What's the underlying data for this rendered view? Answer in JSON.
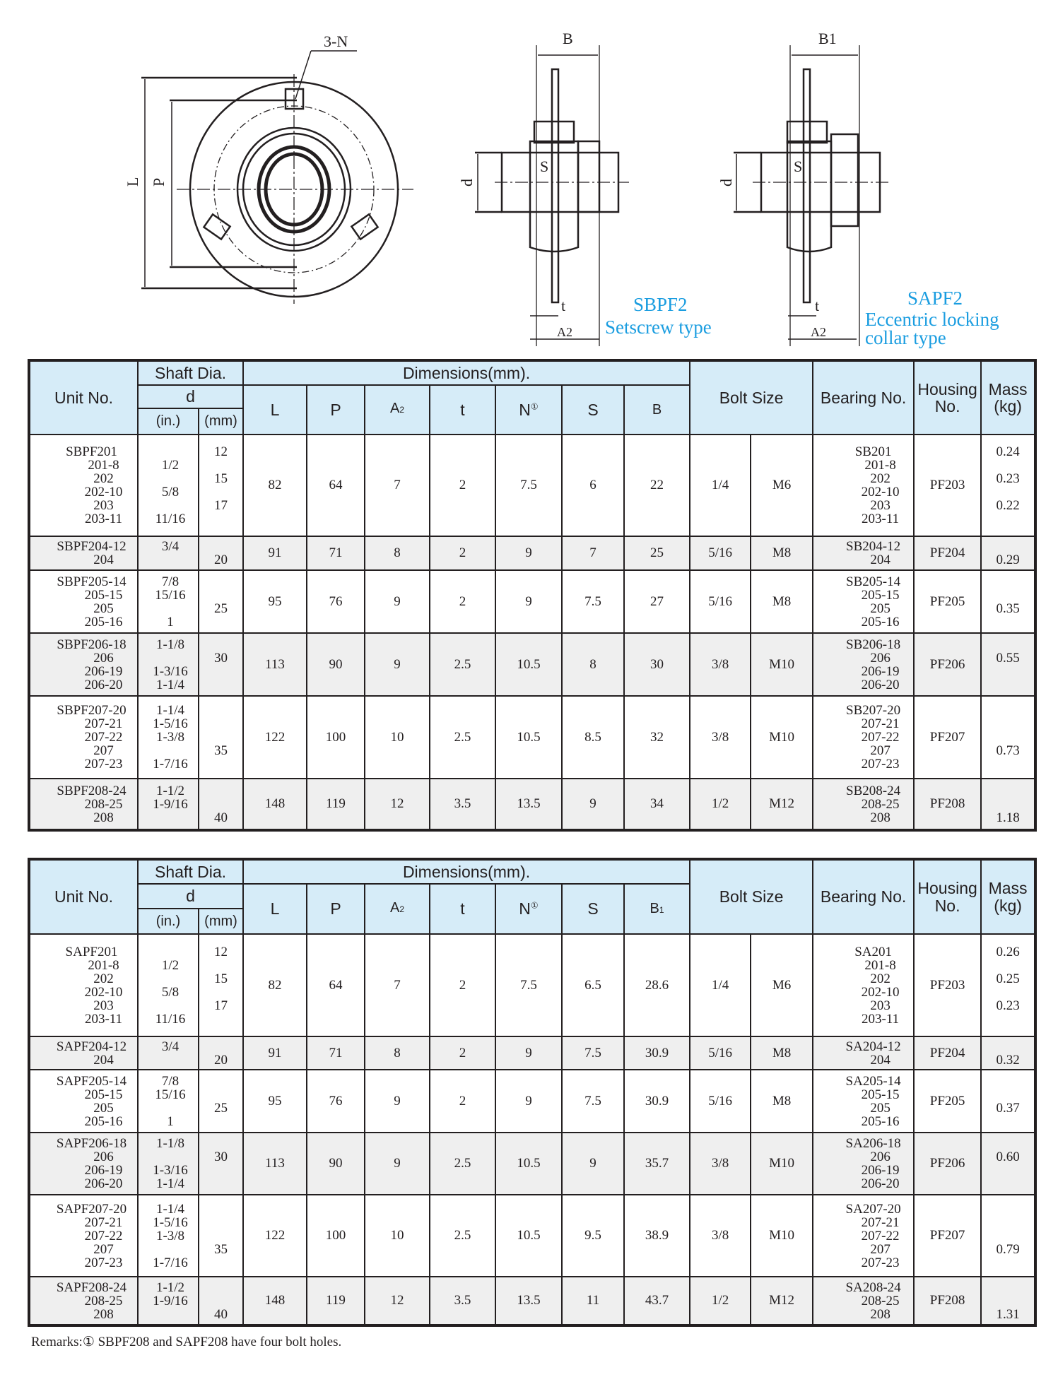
{
  "drawing": {
    "flange_label": "3-N",
    "dim_L": "L",
    "dim_P": "P",
    "dim_B": "B",
    "dim_B1": "B1",
    "dim_d": "d",
    "dim_S": "S",
    "dim_t": "t",
    "dim_A2": "A2",
    "sbpf_title": "SBPF2",
    "sbpf_subtitle": "Setscrew type",
    "sapf_title": "SAPF2",
    "sapf_subtitle_1": "Eccentric locking",
    "sapf_subtitle_2": "collar type",
    "accent_color": "#1a9de0"
  },
  "headers": {
    "unit_no": "Unit No.",
    "shaft_dia": "Shaft Dia.",
    "d": "d",
    "in": "(in.)",
    "mm": "(mm)",
    "dimensions": "Dimensions(mm).",
    "L": "L",
    "P": "P",
    "A2": "A2",
    "t": "t",
    "N": "N",
    "N_mark": "①",
    "S": "S",
    "bolt_size": "Bolt Size",
    "bearing_no": "Bearing No.",
    "housing_no": "Housing No.",
    "mass": "Mass (kg)"
  },
  "tables": [
    {
      "last_col": "B",
      "header_fill": "#d6ecf8",
      "rows": [
        {
          "unit": [
            "SBPF201",
            "201-8",
            "202",
            "202-10",
            "203",
            "203-11"
          ],
          "inch": [
            "",
            "1/2",
            "",
            "5/8",
            "",
            "11/16"
          ],
          "mm": [
            "12",
            "",
            "15",
            "",
            "17",
            ""
          ],
          "L": "82",
          "P": "64",
          "A2": "7",
          "t": "2",
          "N": "7.5",
          "S": "6",
          "B": "22",
          "bolt_in": "1/4",
          "bolt_m": "M6",
          "bearing": [
            "SB201",
            "201-8",
            "202",
            "202-10",
            "203",
            "203-11"
          ],
          "housing": "PF203",
          "mass": [
            "0.24",
            "",
            "0.23",
            "",
            "0.22",
            ""
          ]
        },
        {
          "unit": [
            "SBPF204-12",
            "204"
          ],
          "inch": [
            "3/4",
            ""
          ],
          "mm": [
            "",
            "20"
          ],
          "L": "91",
          "P": "71",
          "A2": "8",
          "t": "2",
          "N": "9",
          "S": "7",
          "B": "25",
          "bolt_in": "5/16",
          "bolt_m": "M8",
          "bearing": [
            "SB204-12",
            "204"
          ],
          "housing": "PF204",
          "mass": [
            "",
            "0.29"
          ]
        },
        {
          "unit": [
            "SBPF205-14",
            "205-15",
            "205",
            "205-16"
          ],
          "inch": [
            "7/8",
            "15/16",
            "",
            "1"
          ],
          "mm": [
            "",
            "",
            "25",
            ""
          ],
          "L": "95",
          "P": "76",
          "A2": "9",
          "t": "2",
          "N": "9",
          "S": "7.5",
          "B": "27",
          "bolt_in": "5/16",
          "bolt_m": "M8",
          "bearing": [
            "SB205-14",
            "205-15",
            "205",
            "205-16"
          ],
          "housing": "PF205",
          "mass": [
            "",
            "",
            "0.35",
            ""
          ]
        },
        {
          "unit": [
            "SBPF206-18",
            "206",
            "206-19",
            "206-20"
          ],
          "inch": [
            "1-1/8",
            "",
            "1-3/16",
            "1-1/4"
          ],
          "mm": [
            "",
            "30",
            "",
            ""
          ],
          "L": "113",
          "P": "90",
          "A2": "9",
          "t": "2.5",
          "N": "10.5",
          "S": "8",
          "B": "30",
          "bolt_in": "3/8",
          "bolt_m": "M10",
          "bearing": [
            "SB206-18",
            "206",
            "206-19",
            "206-20"
          ],
          "housing": "PF206",
          "mass": [
            "",
            "0.55",
            "",
            ""
          ]
        },
        {
          "unit": [
            "SBPF207-20",
            "207-21",
            "207-22",
            "207",
            "207-23"
          ],
          "inch": [
            "1-1/4",
            "1-5/16",
            "1-3/8",
            "",
            "1-7/16"
          ],
          "mm": [
            "",
            "",
            "",
            "35",
            ""
          ],
          "L": "122",
          "P": "100",
          "A2": "10",
          "t": "2.5",
          "N": "10.5",
          "S": "8.5",
          "B": "32",
          "bolt_in": "3/8",
          "bolt_m": "M10",
          "bearing": [
            "SB207-20",
            "207-21",
            "207-22",
            "207",
            "207-23"
          ],
          "housing": "PF207",
          "mass": [
            "",
            "",
            "",
            "0.73",
            ""
          ]
        },
        {
          "unit": [
            "SBPF208-24",
            "208-25",
            "208"
          ],
          "inch": [
            "1-1/2",
            "1-9/16",
            ""
          ],
          "mm": [
            "",
            "",
            "40"
          ],
          "L": "148",
          "P": "119",
          "A2": "12",
          "t": "3.5",
          "N": "13.5",
          "S": "9",
          "B": "34",
          "bolt_in": "1/2",
          "bolt_m": "M12",
          "bearing": [
            "SB208-24",
            "208-25",
            "208"
          ],
          "housing": "PF208",
          "mass": [
            "",
            "",
            "1.18"
          ]
        }
      ]
    },
    {
      "last_col": "B1",
      "header_fill": "#d6ecf8",
      "rows": [
        {
          "unit": [
            "SAPF201",
            "201-8",
            "202",
            "202-10",
            "203",
            "203-11"
          ],
          "inch": [
            "",
            "1/2",
            "",
            "5/8",
            "",
            "11/16"
          ],
          "mm": [
            "12",
            "",
            "15",
            "",
            "17",
            ""
          ],
          "L": "82",
          "P": "64",
          "A2": "7",
          "t": "2",
          "N": "7.5",
          "S": "6.5",
          "B": "28.6",
          "bolt_in": "1/4",
          "bolt_m": "M6",
          "bearing": [
            "SA201",
            "201-8",
            "202",
            "202-10",
            "203",
            "203-11"
          ],
          "housing": "PF203",
          "mass": [
            "0.26",
            "",
            "0.25",
            "",
            "0.23",
            ""
          ]
        },
        {
          "unit": [
            "SAPF204-12",
            "204"
          ],
          "inch": [
            "3/4",
            ""
          ],
          "mm": [
            "",
            "20"
          ],
          "L": "91",
          "P": "71",
          "A2": "8",
          "t": "2",
          "N": "9",
          "S": "7.5",
          "B": "30.9",
          "bolt_in": "5/16",
          "bolt_m": "M8",
          "bearing": [
            "SA204-12",
            "204"
          ],
          "housing": "PF204",
          "mass": [
            "",
            "0.32"
          ]
        },
        {
          "unit": [
            "SAPF205-14",
            "205-15",
            "205",
            "205-16"
          ],
          "inch": [
            "7/8",
            "15/16",
            "",
            "1"
          ],
          "mm": [
            "",
            "",
            "25",
            ""
          ],
          "L": "95",
          "P": "76",
          "A2": "9",
          "t": "2",
          "N": "9",
          "S": "7.5",
          "B": "30.9",
          "bolt_in": "5/16",
          "bolt_m": "M8",
          "bearing": [
            "SA205-14",
            "205-15",
            "205",
            "205-16"
          ],
          "housing": "PF205",
          "mass": [
            "",
            "",
            "0.37",
            ""
          ]
        },
        {
          "unit": [
            "SAPF206-18",
            "206",
            "206-19",
            "206-20"
          ],
          "inch": [
            "1-1/8",
            "",
            "1-3/16",
            "1-1/4"
          ],
          "mm": [
            "",
            "30",
            "",
            ""
          ],
          "L": "113",
          "P": "90",
          "A2": "9",
          "t": "2.5",
          "N": "10.5",
          "S": "9",
          "B": "35.7",
          "bolt_in": "3/8",
          "bolt_m": "M10",
          "bearing": [
            "SA206-18",
            "206",
            "206-19",
            "206-20"
          ],
          "housing": "PF206",
          "mass": [
            "",
            "0.60",
            "",
            ""
          ]
        },
        {
          "unit": [
            "SAPF207-20",
            "207-21",
            "207-22",
            "207",
            "207-23"
          ],
          "inch": [
            "1-1/4",
            "1-5/16",
            "1-3/8",
            "",
            "1-7/16"
          ],
          "mm": [
            "",
            "",
            "",
            "35",
            ""
          ],
          "L": "122",
          "P": "100",
          "A2": "10",
          "t": "2.5",
          "N": "10.5",
          "S": "9.5",
          "B": "38.9",
          "bolt_in": "3/8",
          "bolt_m": "M10",
          "bearing": [
            "SA207-20",
            "207-21",
            "207-22",
            "207",
            "207-23"
          ],
          "housing": "PF207",
          "mass": [
            "",
            "",
            "",
            "0.79",
            ""
          ]
        },
        {
          "unit": [
            "SAPF208-24",
            "208-25",
            "208"
          ],
          "inch": [
            "1-1/2",
            "1-9/16",
            ""
          ],
          "mm": [
            "",
            "",
            "40"
          ],
          "L": "148",
          "P": "119",
          "A2": "12",
          "t": "3.5",
          "N": "13.5",
          "S": "11",
          "B": "43.7",
          "bolt_in": "1/2",
          "bolt_m": "M12",
          "bearing": [
            "SA208-24",
            "208-25",
            "208"
          ],
          "housing": "PF208",
          "mass": [
            "",
            "",
            "1.31"
          ]
        }
      ]
    }
  ],
  "remarks": "Remarks:① SBPF208 and SAPF208 have four bolt holes."
}
